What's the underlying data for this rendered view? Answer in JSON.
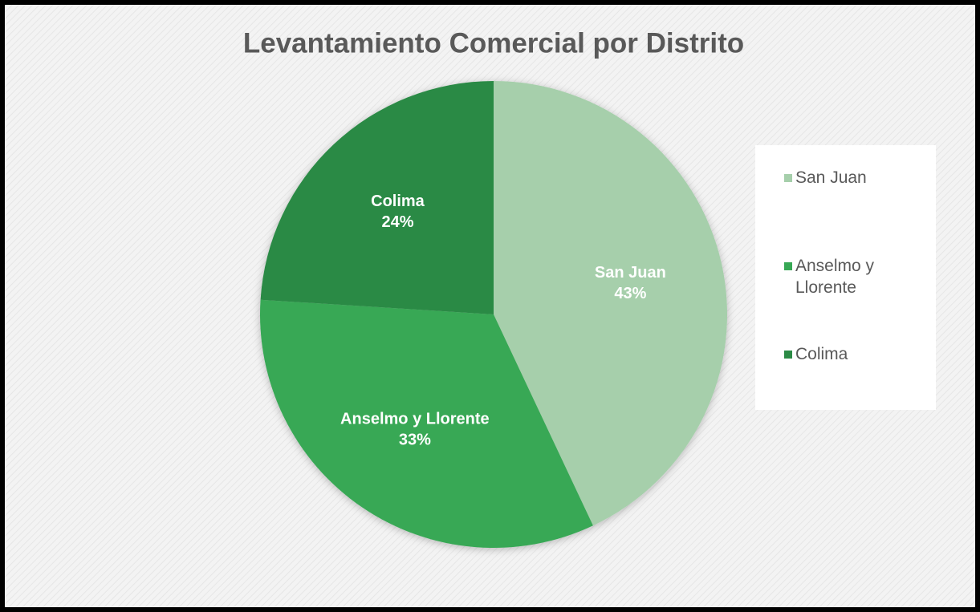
{
  "chart_data": {
    "type": "pie",
    "title": "Levantamiento Comercial por Distrito",
    "categories": [
      "San Juan",
      "Anselmo y Llorente",
      "Colima"
    ],
    "values": [
      43,
      33,
      24
    ],
    "value_labels": [
      "43%",
      "33%",
      "24%"
    ],
    "colors": [
      "#a6cfab",
      "#37a855",
      "#2b8a45"
    ],
    "legend": "right"
  }
}
